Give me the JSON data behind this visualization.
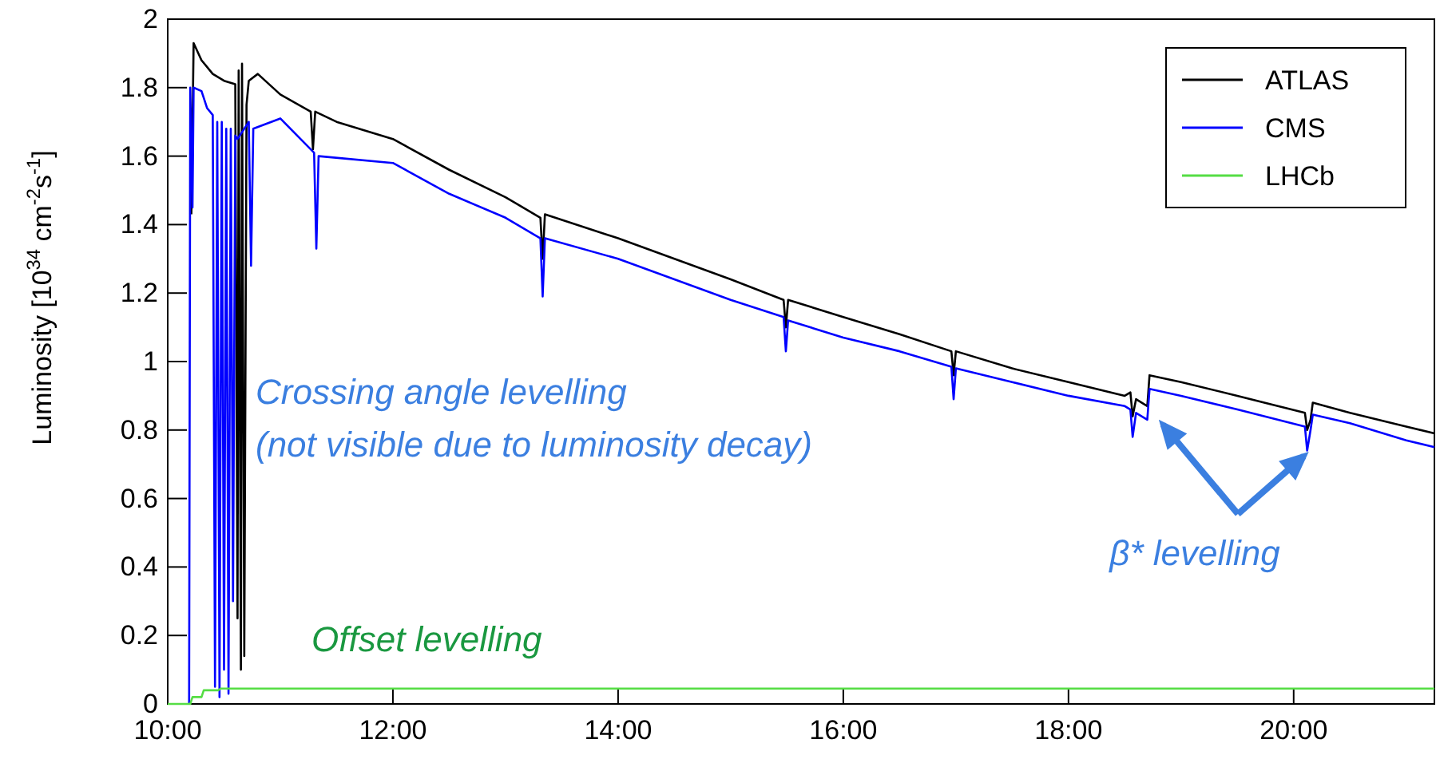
{
  "chart_data": {
    "type": "line",
    "ylabel": "Luminosity [10$^{34}$ cm$^{-2}$s$^{-1}$]",
    "xlim": [
      10,
      21.25
    ],
    "xticks": [
      {
        "value": 10,
        "label": "10:00"
      },
      {
        "value": 12,
        "label": "12:00"
      },
      {
        "value": 14,
        "label": "14:00"
      },
      {
        "value": 16,
        "label": "16:00"
      },
      {
        "value": 18,
        "label": "18:00"
      },
      {
        "value": 20,
        "label": "20:00"
      }
    ],
    "ylim": [
      0,
      2
    ],
    "yticks": [
      0,
      0.2,
      0.4,
      0.6,
      0.8,
      1,
      1.2,
      1.4,
      1.6,
      1.8,
      2
    ],
    "grid": false,
    "legend": "top right",
    "marker": "none",
    "line_style": "solid",
    "series": [
      {
        "name": "ATLAS",
        "color": "#000000",
        "x": [
          10.21,
          10.23,
          10.3,
          10.4,
          10.5,
          10.6,
          10.62,
          10.63,
          10.65,
          10.66,
          10.68,
          10.7,
          10.72,
          10.8,
          11,
          11.27,
          11.29,
          11.31,
          11.5,
          12,
          12.5,
          13,
          13.31,
          13.33,
          13.35,
          14,
          14.5,
          15,
          15.47,
          15.49,
          15.51,
          16,
          16.5,
          16.96,
          16.98,
          17,
          17.5,
          18,
          18.5,
          18.55,
          18.57,
          18.6,
          18.7,
          18.72,
          19,
          19.5,
          20.1,
          20.12,
          20.15,
          20.17,
          20.5,
          21,
          21.25
        ],
        "values": [
          1.43,
          1.93,
          1.88,
          1.84,
          1.82,
          1.81,
          0.25,
          1.85,
          0.1,
          1.87,
          0.14,
          1.75,
          1.82,
          1.84,
          1.78,
          1.73,
          1.62,
          1.73,
          1.7,
          1.65,
          1.56,
          1.48,
          1.42,
          1.3,
          1.43,
          1.36,
          1.3,
          1.24,
          1.18,
          1.1,
          1.18,
          1.13,
          1.08,
          1.03,
          0.96,
          1.03,
          0.98,
          0.94,
          0.9,
          0.91,
          0.84,
          0.89,
          0.87,
          0.96,
          0.94,
          0.9,
          0.85,
          0.8,
          0.83,
          0.88,
          0.85,
          0.81,
          0.79
        ]
      },
      {
        "name": "CMS",
        "color": "#0000ff",
        "x": [
          10.19,
          10.2,
          10.22,
          10.23,
          10.3,
          10.35,
          10.4,
          10.42,
          10.44,
          10.46,
          10.48,
          10.5,
          10.52,
          10.54,
          10.56,
          10.58,
          10.6,
          10.62,
          10.72,
          10.74,
          10.76,
          11,
          11.3,
          11.32,
          11.34,
          12,
          12.5,
          13,
          13.31,
          13.33,
          13.35,
          14,
          14.5,
          15,
          15.47,
          15.49,
          15.51,
          16,
          16.5,
          16.96,
          16.98,
          17,
          17.5,
          18,
          18.5,
          18.55,
          18.57,
          18.6,
          18.7,
          18.72,
          19,
          19.5,
          20.1,
          20.12,
          20.15,
          20.17,
          20.5,
          21,
          21.25
        ],
        "values": [
          0,
          1.8,
          1.45,
          1.8,
          1.79,
          1.74,
          1.72,
          0.05,
          1.7,
          0.02,
          1.7,
          0.1,
          1.68,
          0.03,
          1.68,
          0.3,
          1.66,
          1.65,
          1.7,
          1.28,
          1.68,
          1.71,
          1.61,
          1.33,
          1.6,
          1.58,
          1.49,
          1.42,
          1.36,
          1.19,
          1.36,
          1.3,
          1.24,
          1.18,
          1.13,
          1.03,
          1.12,
          1.07,
          1.03,
          0.985,
          0.89,
          0.98,
          0.94,
          0.9,
          0.87,
          0.86,
          0.78,
          0.85,
          0.83,
          0.92,
          0.9,
          0.86,
          0.81,
          0.74,
          0.8,
          0.845,
          0.82,
          0.77,
          0.75
        ]
      },
      {
        "name": "LHCb",
        "color": "#55dd44",
        "x": [
          10,
          10.2,
          10.22,
          10.3,
          10.32,
          10.45,
          10.47,
          21.25
        ],
        "values": [
          0,
          0,
          0.02,
          0.02,
          0.04,
          0.04,
          0.045,
          0.045
        ]
      }
    ],
    "annotations": [
      "Crossing angle levelling\n(not visible due to luminosity decay)",
      "Offset levelling",
      {
        "text": "β* levelling",
        "x": 20.12,
        "y": 0.78
      }
    ]
  }
}
